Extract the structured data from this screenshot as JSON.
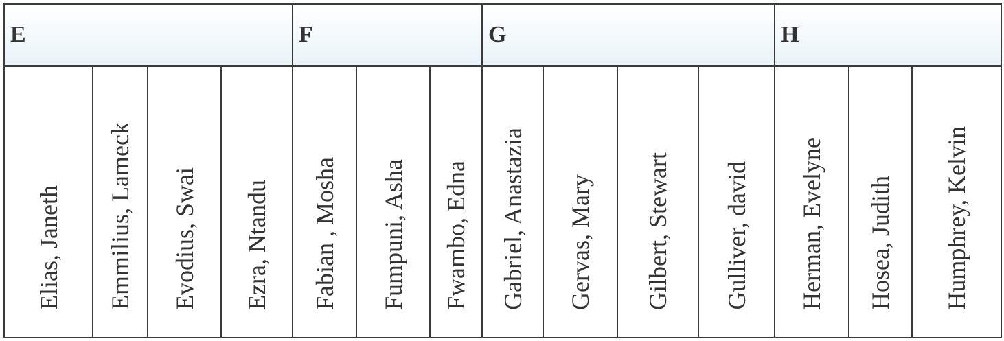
{
  "groups": [
    {
      "letter": "E",
      "names": [
        "Elias, Janeth",
        "Emmilius, Lameck",
        "Evodius, Swai",
        "Ezra, Ntandu"
      ]
    },
    {
      "letter": "F",
      "names": [
        "Fabian , Mosha",
        "Fumpuni, Asha",
        "Fwambo, Edna"
      ]
    },
    {
      "letter": "G",
      "names": [
        "Gabriel, Anastazia",
        "Gervas, Mary",
        "Gilbert, Stewart",
        "Gulliver, david"
      ]
    },
    {
      "letter": "H",
      "names": [
        "Herman, Evelyne",
        "Hosea, Judith",
        "Humphrey, Kelvin"
      ]
    }
  ]
}
